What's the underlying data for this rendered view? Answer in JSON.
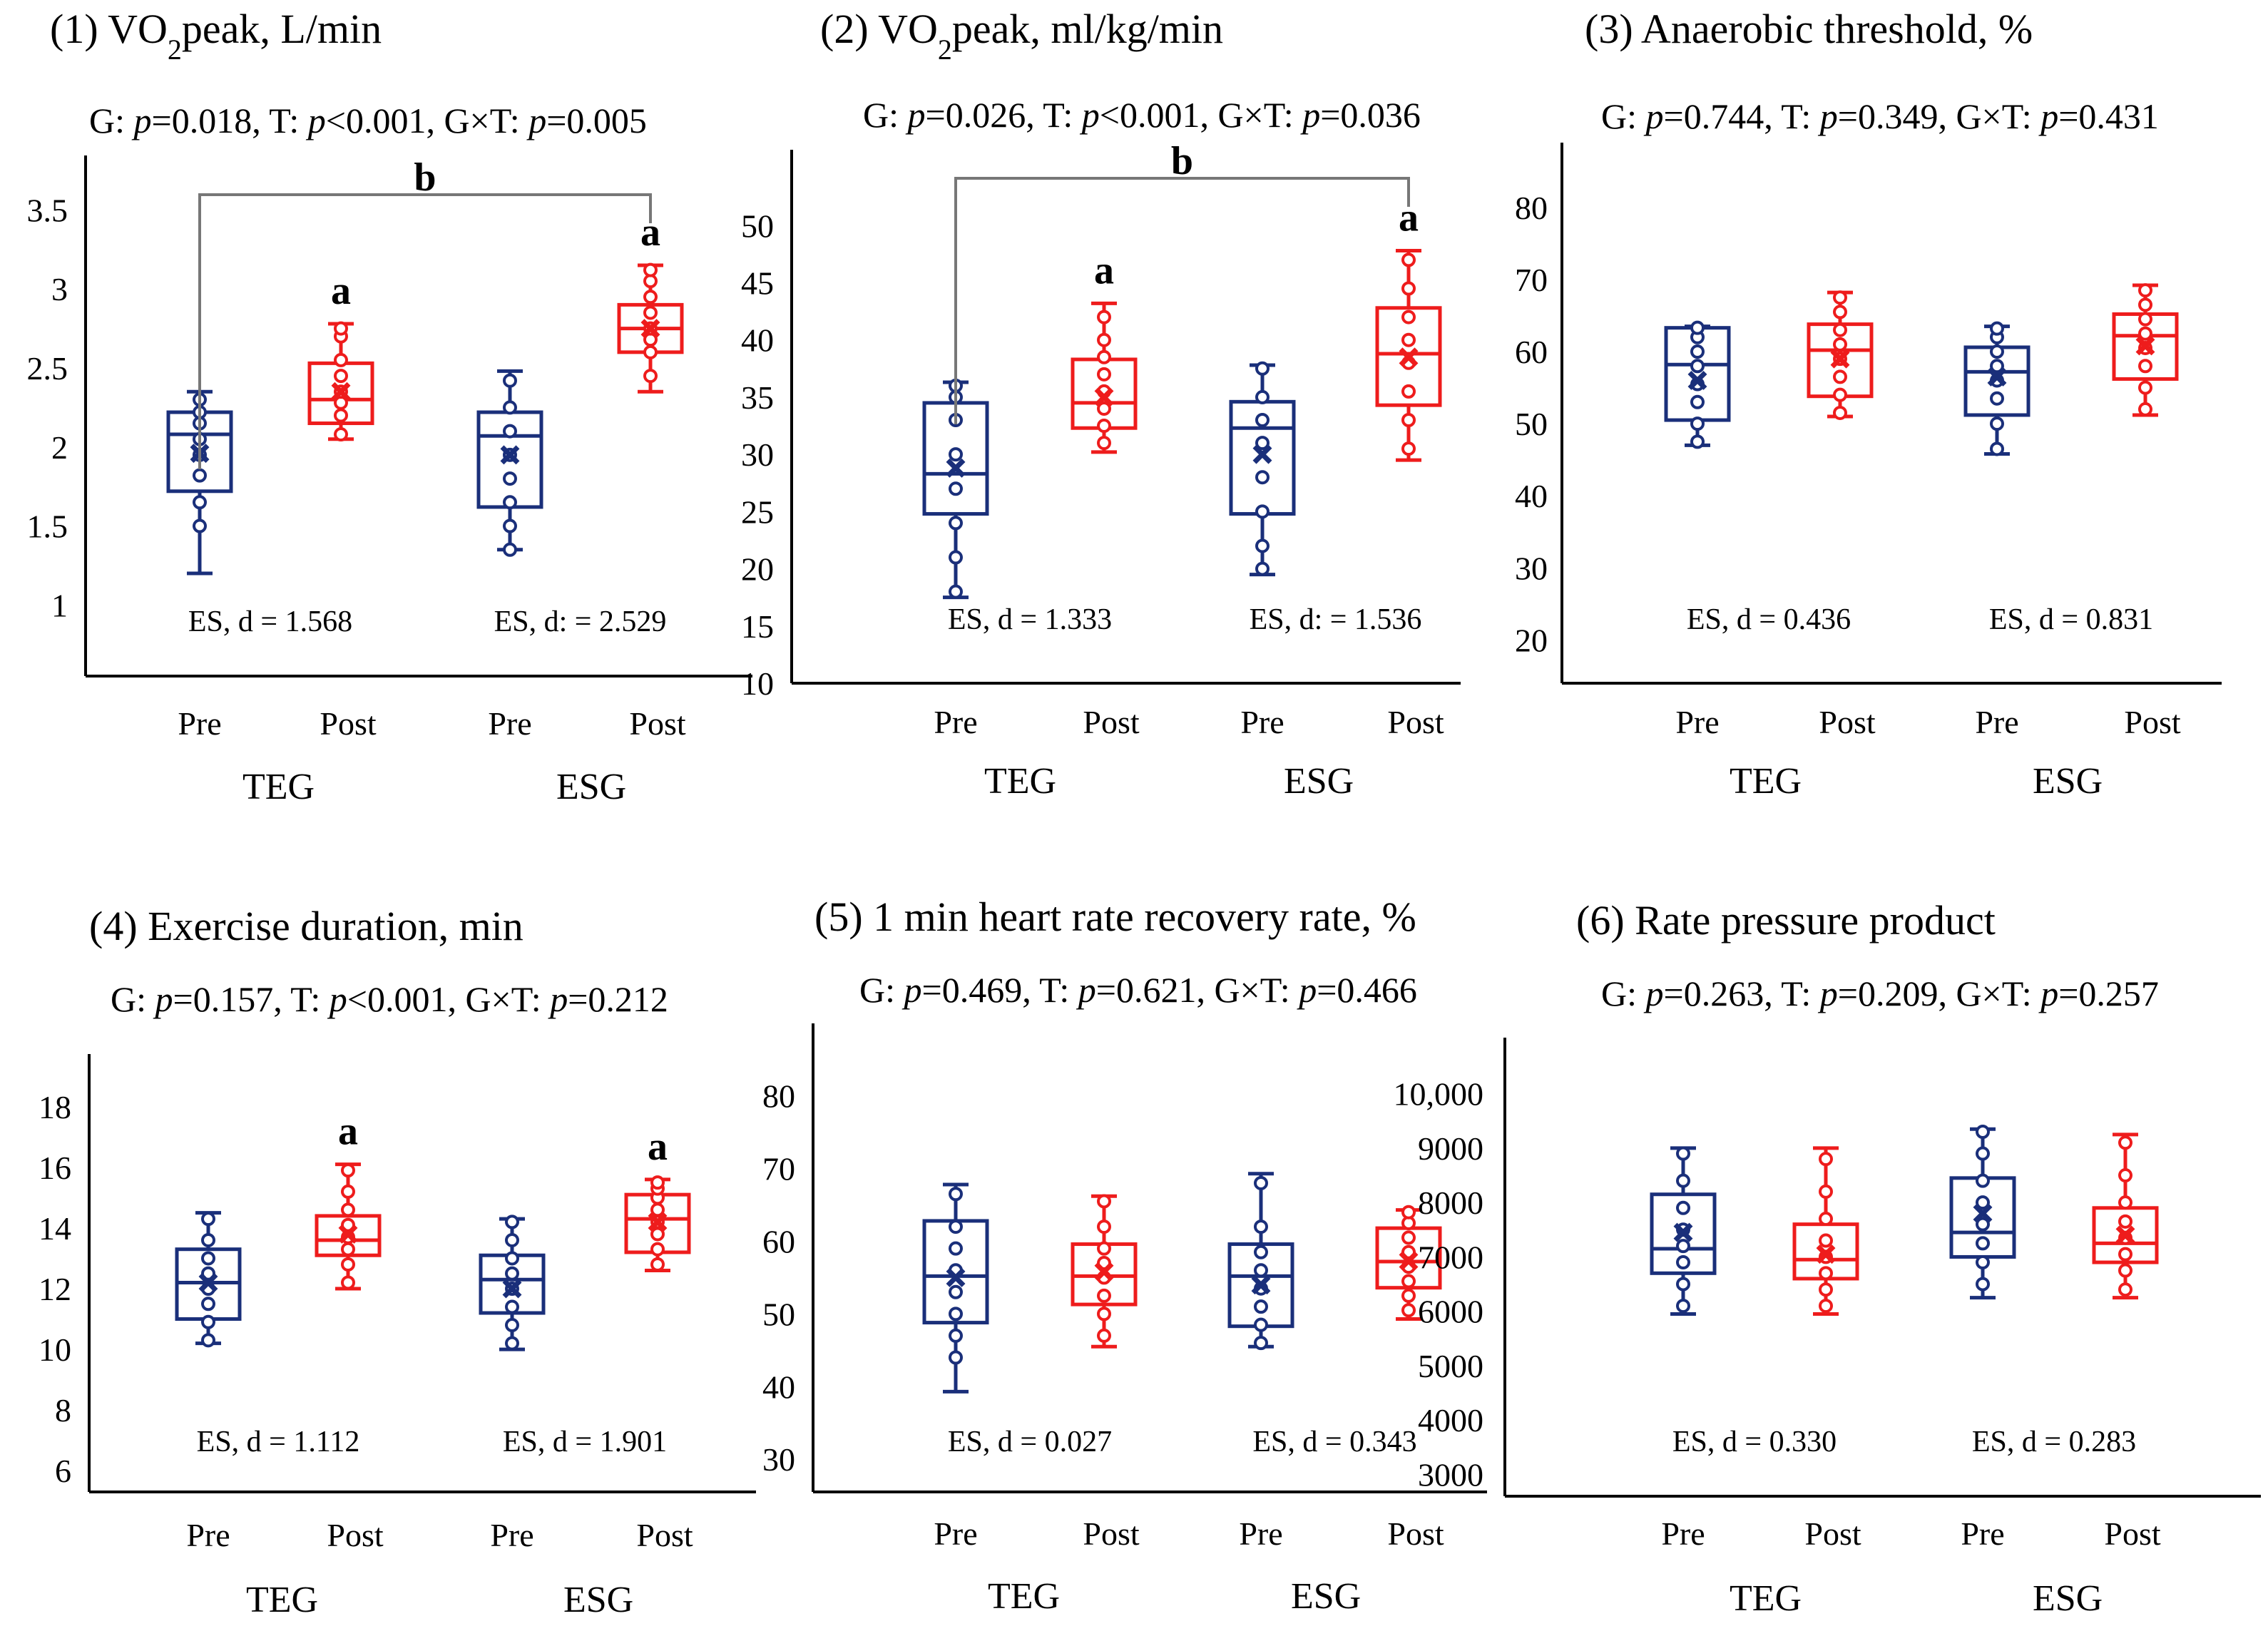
{
  "colors": {
    "pre": "#1a2f7a",
    "post": "#ee1c1c",
    "axis": "#000000"
  },
  "chart_data": [
    {
      "type": "box",
      "title": "(1) VO2peak, L/min",
      "title_main": "(1) VO",
      "title_sub": "2",
      "title_rest": "peak, L/min",
      "stats": {
        "G": "0.018",
        "T": "<0.001",
        "GxT": "0.005"
      },
      "yticks": [
        "1",
        "1.5",
        "2",
        "2.5",
        "3",
        "3.5"
      ],
      "yrange": [
        0.55,
        3.8
      ],
      "groups": [
        {
          "name": "TEG",
          "es": "ES, d = 1.568",
          "pre": {
            "min": 1.2,
            "q1": 1.72,
            "median": 2.08,
            "q3": 2.22,
            "max": 2.35,
            "mean": 1.96,
            "points": [
              1.5,
              1.65,
              1.82,
              1.95,
              2.05,
              2.15,
              2.22,
              2.3
            ]
          },
          "post": {
            "min": 2.05,
            "q1": 2.15,
            "median": 2.3,
            "q3": 2.53,
            "max": 2.78,
            "mean": 2.35,
            "points": [
              2.08,
              2.2,
              2.28,
              2.35,
              2.45,
              2.55,
              2.7,
              2.75
            ]
          }
        },
        {
          "name": "ESG",
          "es": "ES, d: = 2.529",
          "pre": {
            "min": 1.35,
            "q1": 1.62,
            "median": 2.07,
            "q3": 2.22,
            "max": 2.48,
            "mean": 1.95,
            "points": [
              1.35,
              1.5,
              1.65,
              1.8,
              1.95,
              2.1,
              2.25,
              2.42
            ]
          },
          "post": {
            "min": 2.35,
            "q1": 2.6,
            "median": 2.75,
            "q3": 2.9,
            "max": 3.15,
            "mean": 2.75,
            "points": [
              2.45,
              2.6,
              2.68,
              2.75,
              2.85,
              2.95,
              3.05,
              3.12
            ]
          }
        }
      ],
      "sig_a": [
        "TEG",
        "ESG"
      ],
      "sig_b": "b"
    },
    {
      "type": "box",
      "title": "(2) VO2peak, ml/kg/min",
      "title_main": "(2) VO",
      "title_sub": "2",
      "title_rest": "peak, ml/kg/min",
      "stats": {
        "G": "0.026",
        "T": "<0.001",
        "GxT": "0.036"
      },
      "yticks": [
        "10",
        "15",
        "20",
        "25",
        "30",
        "35",
        "40",
        "45",
        "50"
      ],
      "yrange": [
        10,
        56
      ],
      "groups": [
        {
          "name": "TEG",
          "es": "ES, d = 1.333",
          "pre": {
            "min": 17.5,
            "q1": 24.8,
            "median": 28.3,
            "q3": 34.5,
            "max": 36.3,
            "mean": 28.8,
            "points": [
              18,
              21,
              24,
              27,
              30,
              33,
              35,
              36
            ]
          },
          "post": {
            "min": 30.2,
            "q1": 32.3,
            "median": 34.5,
            "q3": 38.3,
            "max": 43.2,
            "mean": 35.0,
            "points": [
              31,
              32.5,
              34,
              35.5,
              37,
              38.5,
              40,
              42
            ]
          }
        },
        {
          "name": "ESG",
          "es": "ES, d: = 1.536",
          "pre": {
            "min": 19.5,
            "q1": 24.8,
            "median": 32.3,
            "q3": 34.6,
            "max": 37.8,
            "mean": 30.0,
            "points": [
              20,
              22,
              25,
              28,
              31,
              33,
              35,
              37.5
            ]
          },
          "post": {
            "min": 29.5,
            "q1": 34.3,
            "median": 38.8,
            "q3": 42.8,
            "max": 47.8,
            "mean": 38.5,
            "points": [
              30.5,
              33,
              35.5,
              38,
              40,
              42,
              44.5,
              47
            ]
          }
        }
      ],
      "sig_a": [
        "TEG",
        "ESG"
      ],
      "sig_b": "b"
    },
    {
      "type": "box",
      "title": "(3) Anaerobic threshold, %",
      "stats": {
        "G": "0.744",
        "T": "0.349",
        "GxT": "0.431"
      },
      "yticks": [
        "20",
        "30",
        "40",
        "50",
        "60",
        "70",
        "80"
      ],
      "yrange": [
        14,
        88
      ],
      "groups": [
        {
          "name": "TEG",
          "es": "ES, d = 0.436",
          "pre": {
            "min": 47,
            "q1": 50.5,
            "median": 58.2,
            "q3": 63.3,
            "max": 63.5,
            "mean": 56.0,
            "points": [
              47.5,
              50,
              53,
              55.5,
              58,
              60,
              62,
              63.3
            ]
          },
          "post": {
            "min": 51,
            "q1": 53.8,
            "median": 60.2,
            "q3": 63.8,
            "max": 68.2,
            "mean": 59.0,
            "points": [
              51.5,
              54,
              56.5,
              59,
              61,
              63,
              65.5,
              67.5
            ]
          }
        },
        {
          "name": "ESG",
          "es": "ES, d = 0.831",
          "pre": {
            "min": 45.8,
            "q1": 51.2,
            "median": 57.2,
            "q3": 60.6,
            "max": 63.5,
            "mean": 56.5,
            "points": [
              46.5,
              50,
              53.5,
              56,
              58,
              60,
              62,
              63.2
            ]
          },
          "post": {
            "min": 51.2,
            "q1": 56.2,
            "median": 62.2,
            "q3": 65.2,
            "max": 69.2,
            "mean": 60.8,
            "points": [
              52,
              55,
              58,
              60.5,
              62.5,
              64.5,
              66.5,
              68.5
            ]
          }
        }
      ]
    },
    {
      "type": "box",
      "title": "(4) Exercise duration, min",
      "stats": {
        "G": "0.157",
        "T": "<0.001",
        "GxT": "0.212"
      },
      "yticks": [
        "6",
        "8",
        "10",
        "12",
        "14",
        "16",
        "18"
      ],
      "yrange": [
        5.3,
        19.5
      ],
      "groups": [
        {
          "name": "TEG",
          "es": "ES, d = 1.112",
          "pre": {
            "min": 10.2,
            "q1": 11.0,
            "median": 12.2,
            "q3": 13.3,
            "max": 14.5,
            "mean": 12.2,
            "points": [
              10.3,
              10.9,
              11.5,
              12.0,
              12.5,
              13.0,
              13.6,
              14.3
            ]
          },
          "post": {
            "min": 12.0,
            "q1": 13.1,
            "median": 13.6,
            "q3": 14.4,
            "max": 16.1,
            "mean": 13.8,
            "points": [
              12.2,
              12.8,
              13.3,
              13.7,
              14.1,
              14.6,
              15.2,
              15.9
            ]
          }
        },
        {
          "name": "ESG",
          "es": "ES, d = 1.901",
          "pre": {
            "min": 10.0,
            "q1": 11.2,
            "median": 12.3,
            "q3": 13.1,
            "max": 14.3,
            "mean": 12.0,
            "points": [
              10.2,
              10.8,
              11.4,
              12.0,
              12.5,
              13.0,
              13.6,
              14.2
            ]
          },
          "post": {
            "min": 12.6,
            "q1": 13.2,
            "median": 14.3,
            "q3": 15.1,
            "max": 15.6,
            "mean": 14.2,
            "points": [
              12.8,
              13.3,
              13.8,
              14.2,
              14.6,
              15.0,
              15.3,
              15.5
            ]
          }
        }
      ],
      "sig_a": [
        "TEG",
        "ESG"
      ]
    },
    {
      "type": "box",
      "title": "(5) 1 min heart rate recovery rate, %",
      "stats": {
        "G": "0.469",
        "T": "0.621",
        "GxT": "0.466"
      },
      "yticks": [
        "30",
        "40",
        "50",
        "60",
        "70",
        "80"
      ],
      "yrange": [
        25.5,
        89
      ],
      "groups": [
        {
          "name": "TEG",
          "es": "ES, d = 0.027",
          "pre": {
            "min": 39.3,
            "q1": 48.8,
            "median": 55.2,
            "q3": 62.8,
            "max": 67.8,
            "mean": 55.0,
            "points": [
              44,
              47,
              50,
              53,
              56,
              59,
              62,
              66.5
            ]
          },
          "post": {
            "min": 45.5,
            "q1": 51.3,
            "median": 55.2,
            "q3": 59.6,
            "max": 66.2,
            "mean": 55.8,
            "points": [
              47,
              50,
              52.5,
              55,
              57,
              59,
              62,
              65.5
            ]
          }
        },
        {
          "name": "ESG",
          "es": "ES, d = 0.343",
          "pre": {
            "min": 45.5,
            "q1": 48.3,
            "median": 55.2,
            "q3": 59.6,
            "max": 69.3,
            "mean": 54.0,
            "points": [
              46,
              48.5,
              51,
              53.5,
              56,
              58.5,
              62,
              68
            ]
          },
          "post": {
            "min": 49.3,
            "q1": 53.6,
            "median": 57.2,
            "q3": 61.8,
            "max": 64.3,
            "mean": 57.3,
            "points": [
              50.5,
              52.5,
              54.5,
              56.5,
              58.5,
              60.5,
              62.5,
              64
            ]
          }
        }
      ]
    },
    {
      "type": "box",
      "title": "(6) Rate pressure product",
      "stats": {
        "G": "0.263",
        "T": "0.209",
        "GxT": "0.257"
      },
      "yticks": [
        "3000",
        "4000",
        "5000",
        "6000",
        "7000",
        "8000",
        "9000",
        "10,000"
      ],
      "yrange": [
        2600,
        10900
      ],
      "groups": [
        {
          "name": "TEG",
          "es": "ES, d = 0.330",
          "pre": {
            "min": 5950,
            "q1": 6700,
            "median": 7150,
            "q3": 8150,
            "max": 9000,
            "mean": 7450,
            "points": [
              6100,
              6500,
              6900,
              7200,
              7500,
              7900,
              8400,
              8900
            ]
          },
          "post": {
            "min": 5950,
            "q1": 6600,
            "median": 6950,
            "q3": 7600,
            "max": 9000,
            "mean": 7050,
            "points": [
              6100,
              6400,
              6700,
              7000,
              7300,
              7700,
              8200,
              8800
            ]
          }
        },
        {
          "name": "ESG",
          "es": "ES, d = 0.283",
          "pre": {
            "min": 6250,
            "q1": 7000,
            "median": 7450,
            "q3": 8450,
            "max": 9350,
            "mean": 7800,
            "points": [
              6500,
              6900,
              7250,
              7600,
              8000,
              8400,
              8900,
              9300
            ]
          },
          "post": {
            "min": 6250,
            "q1": 6900,
            "median": 7250,
            "q3": 7900,
            "max": 9250,
            "mean": 7400,
            "points": [
              6400,
              6750,
              7050,
              7350,
              7650,
              8000,
              8500,
              9100
            ]
          }
        }
      ]
    }
  ],
  "labels": {
    "pre": "Pre",
    "post": "Post",
    "sig_a": "a"
  }
}
